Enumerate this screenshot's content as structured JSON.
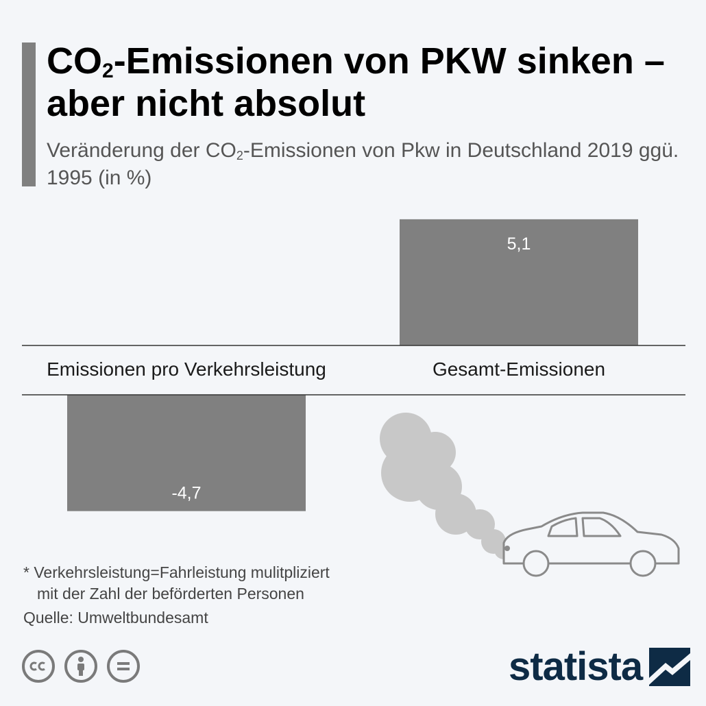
{
  "header": {
    "title_part1": "CO",
    "title_sub": "2",
    "title_part2": "-Emissionen von PKW sinken – aber nicht absolut",
    "subtitle_part1": "Veränderung der CO",
    "subtitle_sub": "2",
    "subtitle_part2": "-Emissionen von Pkw in Deutschland 2019 ggü. 1995 (in %)"
  },
  "chart_data": {
    "type": "bar",
    "categories": [
      "Emissionen pro Verkehrsleistung",
      "Gesamt-Emissionen"
    ],
    "values": [
      -4.7,
      5.1
    ],
    "value_labels": [
      "-4,7",
      "5,1"
    ],
    "bar_color": "#808080",
    "value_label_color": "#ffffff",
    "grid": false,
    "legend": false
  },
  "footer": {
    "note_line1": "* Verkehrsleistung=Fahrleistung mulitpliziert",
    "note_line2": "mit der Zahl der beförderten Personen",
    "source": "Quelle: Umweltbundesamt",
    "cc_icons": [
      "cc-icon",
      "by-icon",
      "nd-icon"
    ],
    "logo": "statista",
    "logo_color": "#0e2b45"
  }
}
